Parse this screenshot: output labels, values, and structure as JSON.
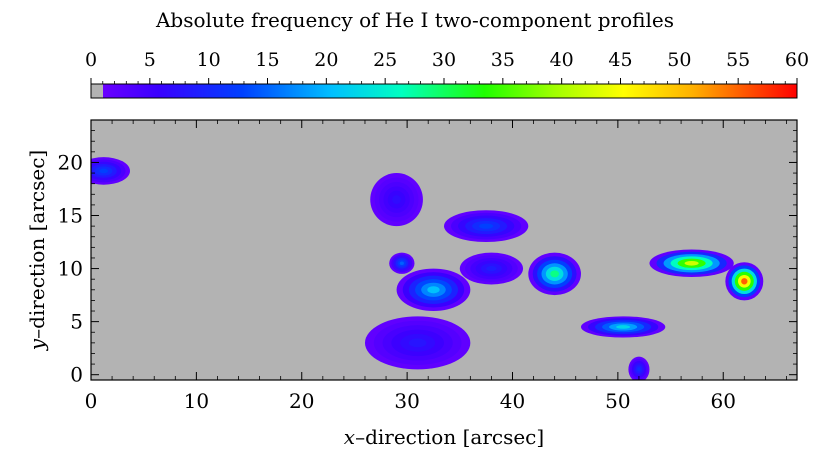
{
  "chart_data": {
    "type": "heatmap",
    "title": "Absolute frequency of He I two-component profiles",
    "xlabel_var": "x",
    "xlabel_rest": "–direction  [arcsec]",
    "ylabel_var": "y",
    "ylabel_rest": "–direction  [arcsec]",
    "xlim": [
      0,
      67
    ],
    "ylim": [
      -0.5,
      24
    ],
    "x_ticks": [
      "0",
      "10",
      "20",
      "30",
      "40",
      "50",
      "60"
    ],
    "x_tick_values": [
      0,
      10,
      20,
      30,
      40,
      50,
      60
    ],
    "y_ticks": [
      "0",
      "5",
      "10",
      "15",
      "20"
    ],
    "y_tick_values": [
      0,
      5,
      10,
      15,
      20
    ],
    "colorbar": {
      "range": [
        0,
        60
      ],
      "ticks": [
        "0",
        "5",
        "10",
        "15",
        "20",
        "25",
        "30",
        "35",
        "40",
        "45",
        "50",
        "55",
        "60"
      ],
      "tick_values": [
        0,
        5,
        10,
        15,
        20,
        25,
        30,
        35,
        40,
        45,
        50,
        55,
        60
      ],
      "colormap": "rainbow",
      "zero_color": "#b3b3b3"
    },
    "background_color": "#b3b3b3",
    "regions": [
      {
        "name": "patch-a",
        "x": 1.2,
        "y": 19.2,
        "rx": 2.5,
        "ry": 1.3,
        "peak": 12
      },
      {
        "name": "patch-b",
        "x": 29.0,
        "y": 16.5,
        "rx": 2.5,
        "ry": 2.5,
        "peak": 6
      },
      {
        "name": "patch-c",
        "x": 29.5,
        "y": 10.5,
        "rx": 1.2,
        "ry": 1.0,
        "peak": 14
      },
      {
        "name": "patch-d",
        "x": 32.5,
        "y": 8.0,
        "rx": 3.5,
        "ry": 2.0,
        "peak": 20
      },
      {
        "name": "patch-e",
        "x": 37.5,
        "y": 14.0,
        "rx": 4.0,
        "ry": 1.5,
        "peak": 12
      },
      {
        "name": "patch-f",
        "x": 44.0,
        "y": 9.5,
        "rx": 2.5,
        "ry": 2.0,
        "peak": 28
      },
      {
        "name": "patch-g",
        "x": 38.0,
        "y": 10.0,
        "rx": 3.0,
        "ry": 1.5,
        "peak": 8
      },
      {
        "name": "patch-h",
        "x": 50.5,
        "y": 4.5,
        "rx": 4.0,
        "ry": 1.0,
        "peak": 22
      },
      {
        "name": "patch-i",
        "x": 57.0,
        "y": 10.5,
        "rx": 4.0,
        "ry": 1.3,
        "peak": 42
      },
      {
        "name": "patch-j",
        "x": 62.0,
        "y": 8.8,
        "rx": 1.8,
        "ry": 1.8,
        "peak": 55
      },
      {
        "name": "patch-k",
        "x": 31.0,
        "y": 3.0,
        "rx": 5.0,
        "ry": 2.5,
        "peak": 7
      },
      {
        "name": "patch-l",
        "x": 52.0,
        "y": 0.5,
        "rx": 1.0,
        "ry": 1.2,
        "peak": 10
      }
    ]
  }
}
